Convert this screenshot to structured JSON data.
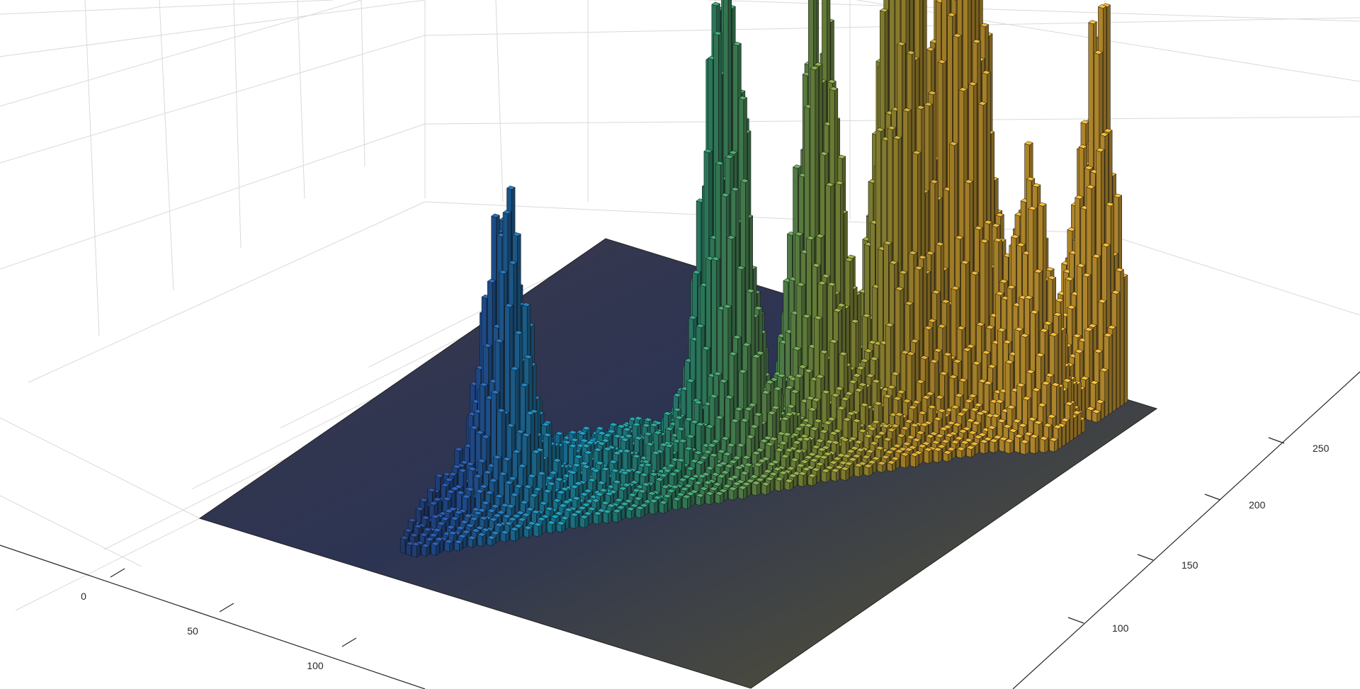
{
  "chart_data": {
    "type": "bar3",
    "description_of_axes": "3D bivariate histogram, perspective view",
    "title": "",
    "xlabel": "",
    "ylabel": "",
    "zlabel": "",
    "x_ticks": [
      "0",
      "50",
      "100"
    ],
    "y_ticks": [
      "100",
      "150",
      "200",
      "250"
    ],
    "x_tick_values": [
      0,
      50,
      100
    ],
    "y_tick_values": [
      100,
      150,
      200,
      250
    ],
    "xlim": [
      -60,
      150
    ],
    "ylim": [
      60,
      290
    ],
    "grid": true,
    "colormap": "parula",
    "colormap_stops": [
      "#2d2a45",
      "#2a5fb8",
      "#1f9bbd",
      "#3aa37a",
      "#8eab4a",
      "#d9a934",
      "#f0b83a"
    ],
    "edge_color": "#111111",
    "bin_size": 1,
    "peaks": [
      {
        "x": 15,
        "y": 120,
        "height": 0.33
      },
      {
        "x": 55,
        "y": 185,
        "height": 0.6
      },
      {
        "x": 70,
        "y": 215,
        "height": 0.58
      },
      {
        "x": 88,
        "y": 235,
        "height": 0.78
      },
      {
        "x": 100,
        "y": 252,
        "height": 1.0
      },
      {
        "x": 125,
        "y": 255,
        "height": 0.32
      },
      {
        "x": 130,
        "y": 285,
        "height": 0.42
      }
    ]
  }
}
